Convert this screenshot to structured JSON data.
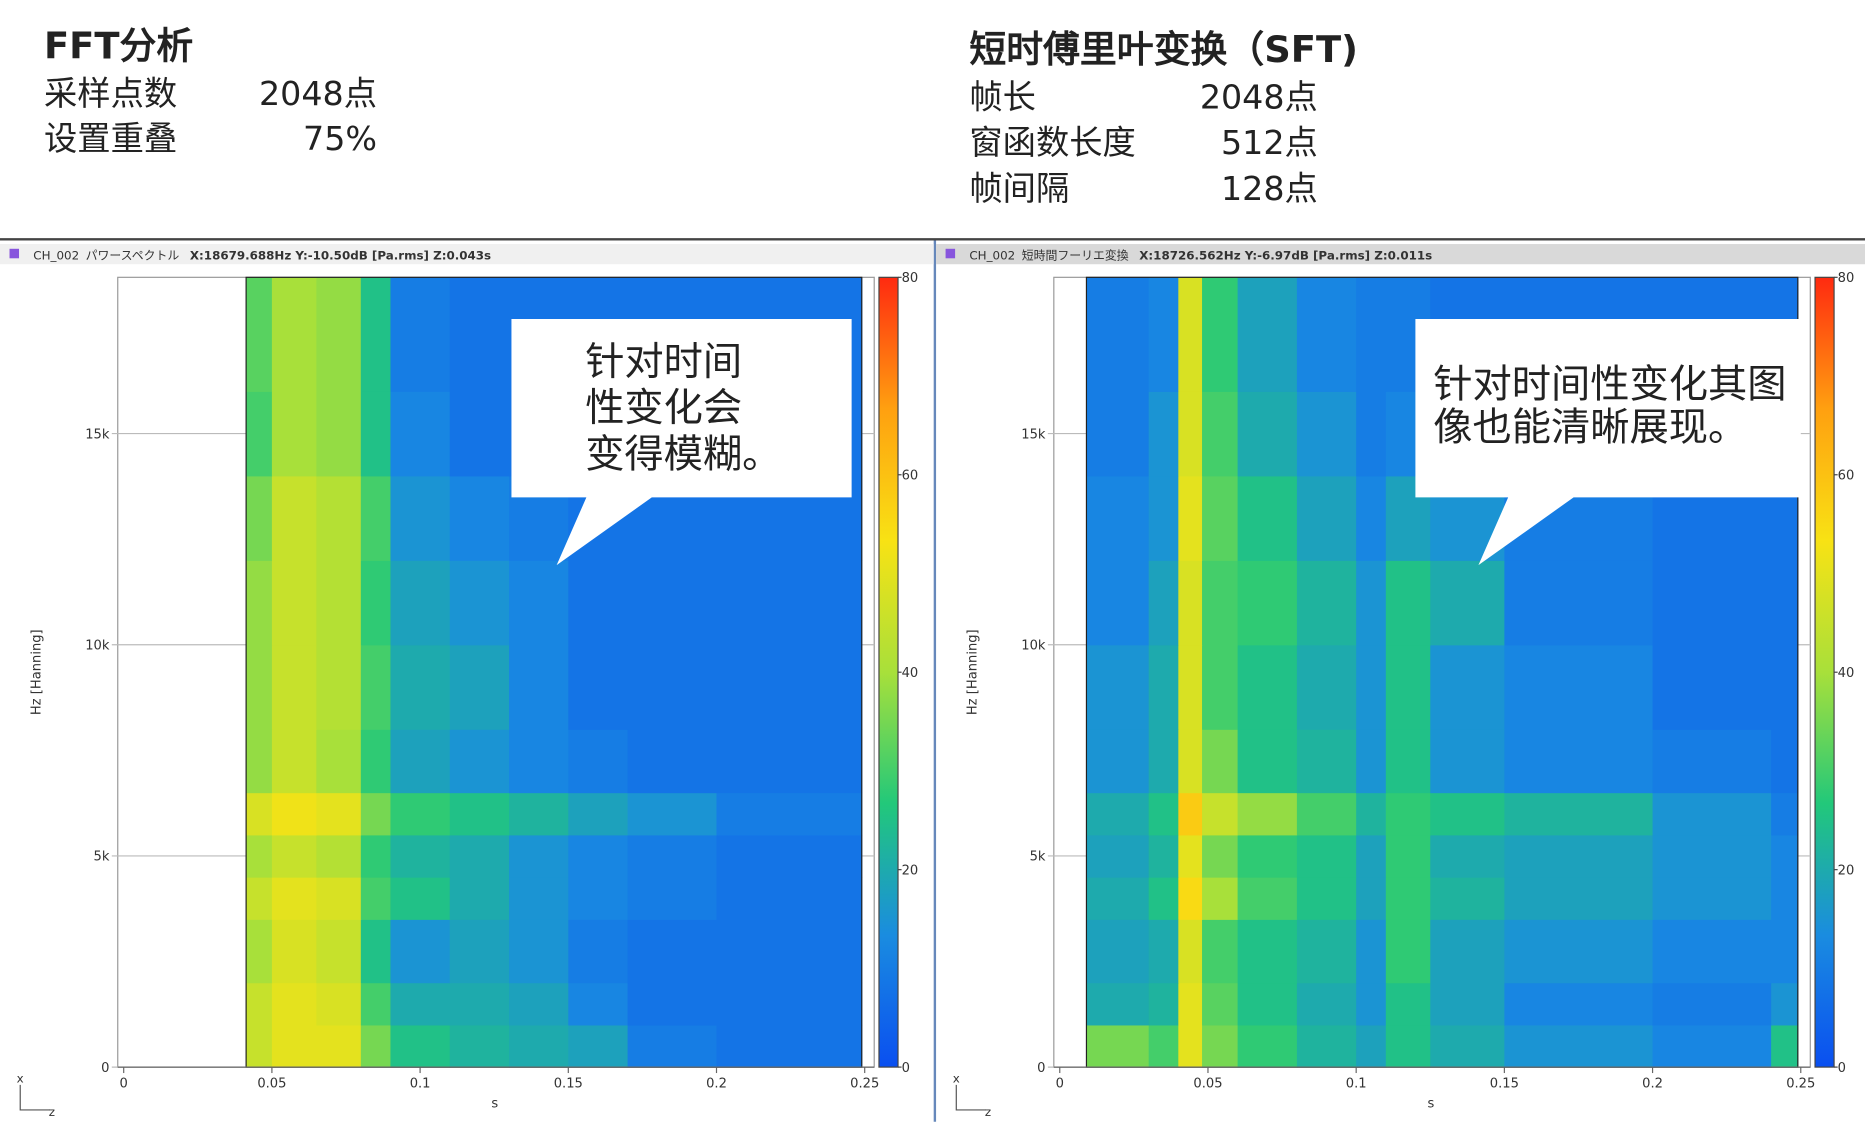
{
  "fft_summary": {
    "title": "FFT分析",
    "rows": [
      {
        "label": "采样点数",
        "value": "2048点"
      },
      {
        "label": "设置重叠",
        "value": "75%"
      }
    ]
  },
  "sft_summary": {
    "title": "短时傅里叶变换（SFT)",
    "rows": [
      {
        "label": "帧长",
        "value": "2048点"
      },
      {
        "label": "窗函数长度",
        "value": "512点"
      },
      {
        "label": "帧间隔",
        "value": "128点"
      }
    ]
  },
  "chart_data": [
    {
      "type": "heatmap",
      "channel": "CH_002",
      "panel_name": "パワースペクトル",
      "readout": "X:18679.688Hz Y:-10.50dB [Pa.rms] Z:0.043s",
      "annotation": [
        "针对时间",
        "性变化会",
        "变得模糊。"
      ],
      "x_label": "s",
      "y_label": "Hz [Hanning]",
      "corner_labels": [
        "x",
        "z"
      ],
      "xlim": [
        0,
        0.25
      ],
      "xticks": [
        0,
        0.05,
        0.1,
        0.15,
        0.2,
        0.25
      ],
      "ylim": [
        0,
        18700
      ],
      "yticks": [
        0,
        {
          "value": 5000,
          "label": "5k"
        },
        {
          "value": 10000,
          "label": "10k"
        },
        {
          "value": 15000,
          "label": "15k"
        }
      ],
      "zlim": [
        0,
        80
      ],
      "zticks": [
        0,
        20,
        40,
        60,
        80
      ],
      "colormap": [
        "#0a4ff0",
        "#1a8ce0",
        "#22c87a",
        "#a8e03a",
        "#f8e214",
        "#ffa010",
        "#ff2a10"
      ],
      "x_edges": [
        0.0413,
        0.05,
        0.065,
        0.08,
        0.09,
        0.11,
        0.13,
        0.15,
        0.17,
        0.2,
        0.249
      ],
      "y_edges": [
        0,
        1000,
        2000,
        3500,
        4500,
        5500,
        6500,
        8000,
        10000,
        12000,
        14000,
        16000,
        18700
      ],
      "z": [
        [
          45,
          50,
          50,
          35,
          25,
          22,
          20,
          18,
          10,
          8
        ],
        [
          45,
          50,
          48,
          30,
          20,
          20,
          18,
          12,
          8,
          8
        ],
        [
          40,
          48,
          45,
          25,
          15,
          18,
          15,
          10,
          8,
          8
        ],
        [
          45,
          50,
          48,
          30,
          25,
          20,
          15,
          12,
          10,
          8
        ],
        [
          40,
          45,
          42,
          28,
          22,
          20,
          15,
          12,
          10,
          8
        ],
        [
          48,
          52,
          50,
          35,
          28,
          25,
          22,
          18,
          15,
          10
        ],
        [
          38,
          45,
          40,
          28,
          18,
          15,
          12,
          10,
          8,
          8
        ],
        [
          38,
          45,
          42,
          30,
          20,
          18,
          12,
          8,
          8,
          8
        ],
        [
          38,
          45,
          42,
          28,
          18,
          15,
          12,
          8,
          8,
          8
        ],
        [
          35,
          45,
          42,
          30,
          15,
          12,
          10,
          8,
          8,
          8
        ],
        [
          30,
          40,
          38,
          25,
          12,
          8,
          8,
          8,
          8,
          8
        ],
        [
          32,
          40,
          38,
          25,
          10,
          8,
          8,
          8,
          8,
          8
        ]
      ]
    },
    {
      "type": "heatmap",
      "channel": "CH_002",
      "panel_name": "短時間フーリエ変換",
      "readout": "X:18726.562Hz Y:-6.97dB [Pa.rms] Z:0.011s",
      "annotation": [
        "针对时间性变化其图",
        "像也能清晰展现。"
      ],
      "x_label": "s",
      "y_label": "Hz [Hanning]",
      "corner_labels": [
        "x",
        "z"
      ],
      "xlim": [
        0,
        0.25
      ],
      "xticks": [
        0,
        0.05,
        0.1,
        0.15,
        0.2,
        0.25
      ],
      "ylim": [
        0,
        18700
      ],
      "yticks": [
        0,
        {
          "value": 5000,
          "label": "5k"
        },
        {
          "value": 10000,
          "label": "10k"
        },
        {
          "value": 15000,
          "label": "15k"
        }
      ],
      "zlim": [
        0,
        80
      ],
      "zticks": [
        0,
        20,
        40,
        60,
        80
      ],
      "colormap": [
        "#0a4ff0",
        "#1a8ce0",
        "#22c87a",
        "#a8e03a",
        "#f8e214",
        "#ffa010",
        "#ff2a10"
      ],
      "x_edges": [
        0.009,
        0.03,
        0.04,
        0.048,
        0.06,
        0.08,
        0.1,
        0.11,
        0.125,
        0.15,
        0.2,
        0.24,
        0.249
      ],
      "y_edges": [
        0,
        1000,
        2000,
        3500,
        4500,
        5500,
        6500,
        8000,
        10000,
        12000,
        14000,
        16000,
        18700
      ],
      "z": [
        [
          35,
          30,
          50,
          35,
          28,
          22,
          18,
          25,
          20,
          15,
          12,
          25
        ],
        [
          20,
          22,
          50,
          32,
          25,
          20,
          15,
          25,
          18,
          12,
          10,
          15
        ],
        [
          18,
          20,
          48,
          30,
          25,
          22,
          15,
          28,
          18,
          15,
          12,
          12
        ],
        [
          20,
          25,
          55,
          40,
          30,
          25,
          18,
          28,
          22,
          18,
          15,
          12
        ],
        [
          18,
          22,
          50,
          35,
          28,
          25,
          18,
          28,
          20,
          18,
          15,
          12
        ],
        [
          20,
          25,
          58,
          45,
          38,
          30,
          22,
          28,
          25,
          22,
          15,
          10
        ],
        [
          15,
          20,
          48,
          35,
          25,
          22,
          15,
          25,
          15,
          12,
          10,
          8
        ],
        [
          15,
          20,
          48,
          30,
          25,
          20,
          15,
          25,
          15,
          12,
          8,
          8
        ],
        [
          12,
          18,
          48,
          30,
          28,
          22,
          15,
          25,
          20,
          10,
          8,
          8
        ],
        [
          12,
          15,
          50,
          32,
          25,
          18,
          12,
          18,
          15,
          10,
          8,
          8
        ],
        [
          10,
          15,
          48,
          30,
          20,
          15,
          10,
          12,
          10,
          8,
          8,
          8
        ],
        [
          10,
          12,
          48,
          28,
          18,
          12,
          10,
          10,
          8,
          8,
          8,
          8
        ]
      ]
    }
  ]
}
